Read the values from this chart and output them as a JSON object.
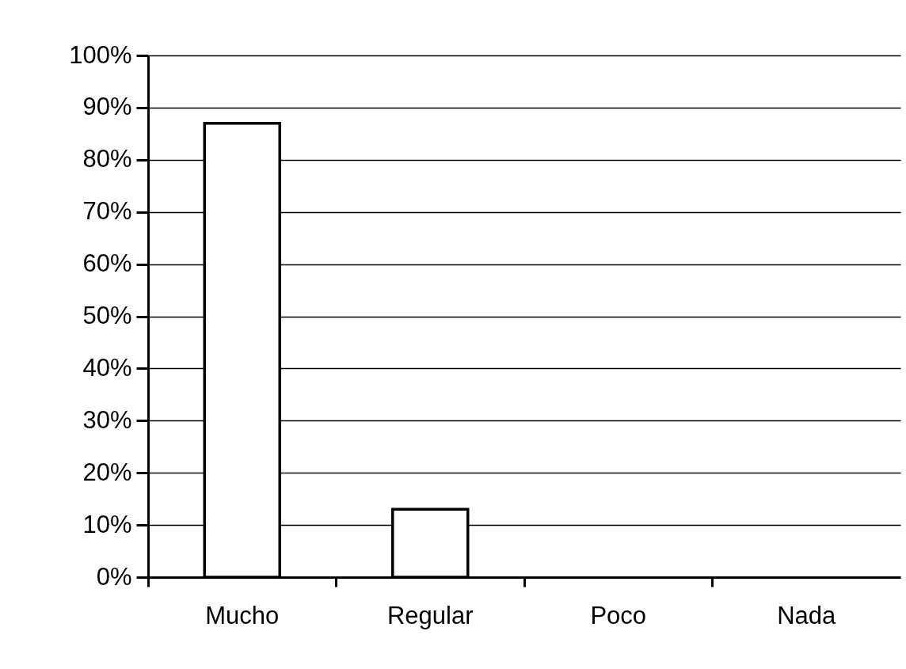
{
  "chart_data": {
    "type": "bar",
    "categories": [
      "Mucho",
      "Regular",
      "Poco",
      "Nada"
    ],
    "values": [
      87,
      13,
      0,
      0
    ],
    "color": "#ffffff",
    "ylim": [
      0,
      100
    ],
    "yticks": [
      {
        "value": 0,
        "label": "0%"
      },
      {
        "value": 10,
        "label": "10%"
      },
      {
        "value": 20,
        "label": "20%"
      },
      {
        "value": 30,
        "label": "30%"
      },
      {
        "value": 40,
        "label": "40%"
      },
      {
        "value": 50,
        "label": "50%"
      },
      {
        "value": 60,
        "label": "60%"
      },
      {
        "value": 70,
        "label": "70%"
      },
      {
        "value": 80,
        "label": "80%"
      },
      {
        "value": 90,
        "label": "90%"
      },
      {
        "value": 100,
        "label": "100%"
      }
    ],
    "grid": "y"
  }
}
